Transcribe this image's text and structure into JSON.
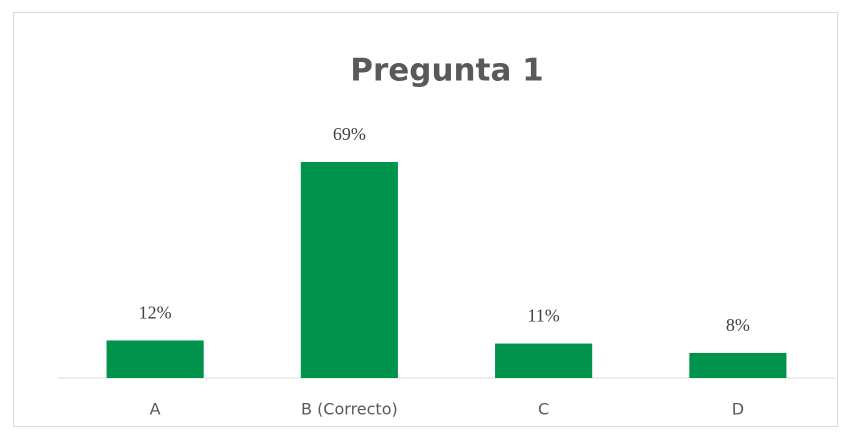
{
  "chart_data": {
    "type": "bar",
    "title": "Pregunta 1",
    "categories": [
      "A",
      "B (Correcto)",
      "C",
      "D"
    ],
    "values": [
      12,
      69,
      11,
      8
    ],
    "value_labels": [
      "12%",
      "69%",
      "11%",
      "8%"
    ],
    "color": "#00934c"
  }
}
